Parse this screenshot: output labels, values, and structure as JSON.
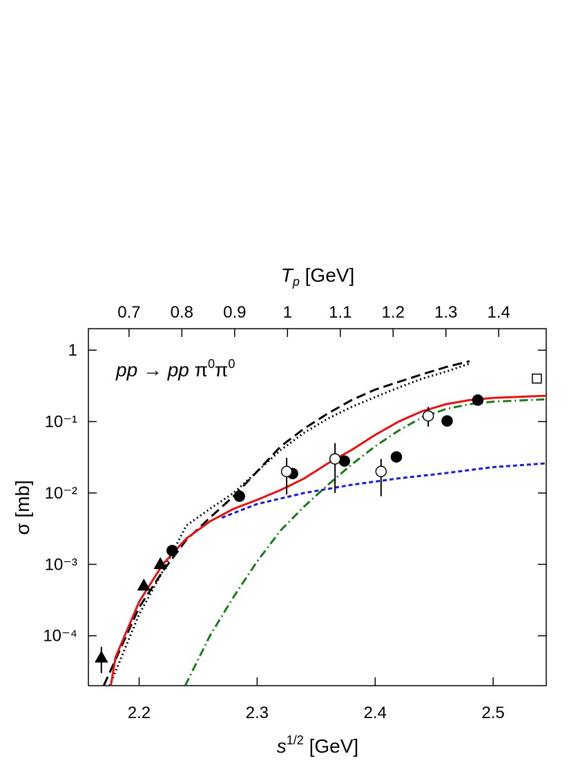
{
  "chart_data": {
    "type": "scatter",
    "x_label": {
      "base": "s",
      "sup": "1/2",
      "rest": " [GeV]"
    },
    "x2_label": {
      "base": "T",
      "sub": "p",
      "rest": "  [GeV]"
    },
    "y_label": "σ [mb]",
    "annotation": {
      "a": "pp",
      "arrow": " → ",
      "b": "pp",
      "pi1": " π",
      "s1": "0",
      "pi2": "π",
      "s2": "0"
    },
    "xlim": [
      2.157,
      2.545
    ],
    "xticks": [
      2.2,
      2.3,
      2.4,
      2.5
    ],
    "x2lim": [
      0.623,
      1.49
    ],
    "x2ticks": [
      0.7,
      0.8,
      0.9,
      1,
      1.1,
      1.2,
      1.3,
      1.4
    ],
    "ylim": [
      2e-05,
      2
    ],
    "log_y": true,
    "yticks": [
      {
        "value": 0.0001,
        "label": "10⁻⁴"
      },
      {
        "value": 0.001,
        "label": "10⁻³"
      },
      {
        "value": 0.01,
        "label": "10⁻²"
      },
      {
        "value": 0.1,
        "label": "10⁻¹"
      },
      1
    ],
    "curves": [
      {
        "color": "#000000",
        "style": "dashed",
        "x": [
          2.17,
          2.2,
          2.22,
          2.24,
          2.26,
          2.28,
          2.3,
          2.32,
          2.34,
          2.36,
          2.38,
          2.4,
          2.42,
          2.44,
          2.46,
          2.48
        ],
        "values": [
          2e-05,
          0.00025,
          0.0008,
          0.0022,
          0.0045,
          0.009,
          0.02,
          0.045,
          0.08,
          0.13,
          0.2,
          0.28,
          0.36,
          0.46,
          0.58,
          0.7
        ]
      },
      {
        "color": "#000000",
        "style": "dotted",
        "x": [
          2.175,
          2.2,
          2.22,
          2.24,
          2.26,
          2.28,
          2.3,
          2.32,
          2.34,
          2.36,
          2.38,
          2.4,
          2.42,
          2.44,
          2.46,
          2.48
        ],
        "values": [
          2e-05,
          0.0002,
          0.0008,
          0.0035,
          0.006,
          0.01,
          0.02,
          0.04,
          0.07,
          0.11,
          0.16,
          0.22,
          0.3,
          0.4,
          0.5,
          0.65
        ]
      },
      {
        "color": "#1a1adb",
        "style": "short-dashed",
        "x": [
          2.27,
          2.3,
          2.34,
          2.38,
          2.42,
          2.46,
          2.5,
          2.545
        ],
        "values": [
          0.0045,
          0.007,
          0.01,
          0.013,
          0.016,
          0.019,
          0.023,
          0.026
        ]
      },
      {
        "color": "#1a7a1a",
        "style": "dash-dot",
        "x": [
          2.239,
          2.26,
          2.28,
          2.3,
          2.32,
          2.34,
          2.36,
          2.38,
          2.4,
          2.42,
          2.44,
          2.46,
          2.48,
          2.5,
          2.545
        ],
        "values": [
          2e-05,
          0.0001,
          0.00035,
          0.0011,
          0.003,
          0.0065,
          0.013,
          0.025,
          0.045,
          0.075,
          0.115,
          0.15,
          0.175,
          0.19,
          0.205
        ]
      },
      {
        "color": "#e81010",
        "style": "solid",
        "x": [
          2.176,
          2.18,
          2.2,
          2.22,
          2.24,
          2.26,
          2.28,
          2.3,
          2.32,
          2.34,
          2.36,
          2.38,
          2.4,
          2.42,
          2.44,
          2.46,
          2.48,
          2.5,
          2.545
        ],
        "values": [
          2e-05,
          5e-05,
          0.0003,
          0.001,
          0.0023,
          0.004,
          0.006,
          0.008,
          0.011,
          0.016,
          0.026,
          0.04,
          0.065,
          0.1,
          0.14,
          0.175,
          0.2,
          0.215,
          0.23
        ]
      }
    ],
    "points": [
      {
        "marker": "filled-circle",
        "x": [
          2.228,
          2.285,
          2.33,
          2.374,
          2.418,
          2.461,
          2.487
        ],
        "values": [
          0.00156,
          0.009,
          0.0187,
          0.028,
          0.032,
          0.102,
          0.2
        ]
      },
      {
        "marker": "open-circle",
        "x": [
          2.325,
          2.366,
          2.405,
          2.445
        ],
        "values": [
          0.02,
          0.03,
          0.02,
          0.12
        ],
        "y_low": [
          0.0095,
          0.01,
          0.009,
          0.085
        ],
        "y_high": [
          0.031,
          0.05,
          0.03,
          0.16
        ]
      },
      {
        "marker": "filled-triangle",
        "x": [
          2.168,
          2.204,
          2.218
        ],
        "values": [
          4.9e-05,
          0.0005,
          0.001
        ],
        "y_low": [
          3e-05,
          0.00043,
          0.00088
        ],
        "y_high": [
          7e-05,
          0.00058,
          0.00113
        ]
      },
      {
        "marker": "open-square",
        "x": [
          2.537
        ],
        "values": [
          0.4
        ]
      }
    ]
  }
}
